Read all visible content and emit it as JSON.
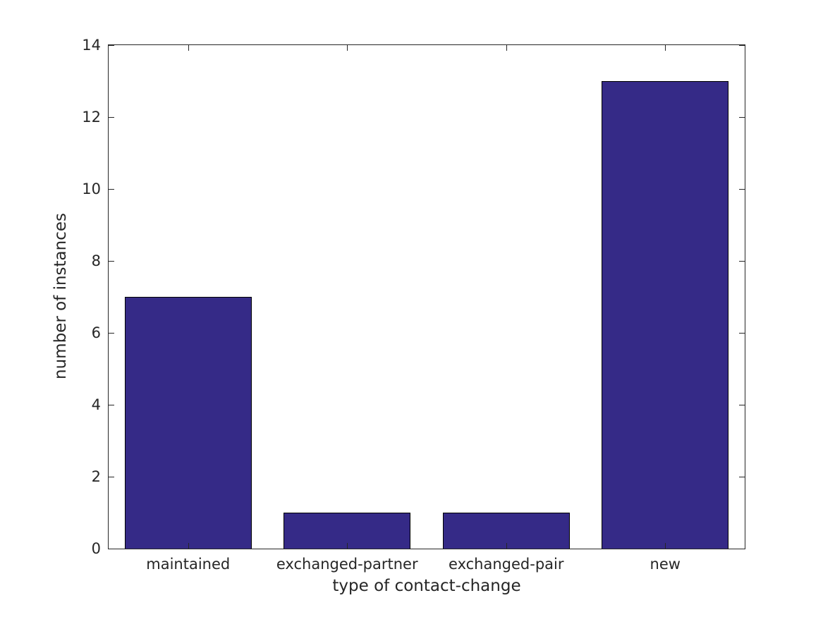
{
  "chart_data": {
    "type": "bar",
    "title": "",
    "categories": [
      "maintained",
      "exchanged-partner",
      "exchanged-pair",
      "new"
    ],
    "values": [
      7,
      1,
      1,
      13
    ],
    "xlabel": "type of contact-change",
    "ylabel": "number of instances",
    "ylim": [
      0,
      14
    ],
    "yticks": [
      0,
      2,
      4,
      6,
      8,
      10,
      12,
      14
    ],
    "bar_width_fraction": 0.8,
    "legend": "none",
    "grid": "off",
    "box": "on",
    "tick_direction": "in",
    "colors": {
      "bar_fill": "#352A87",
      "bar_edge": "#000000",
      "axis": "#262626",
      "text": "#262626",
      "background": "#FFFFFF"
    }
  }
}
